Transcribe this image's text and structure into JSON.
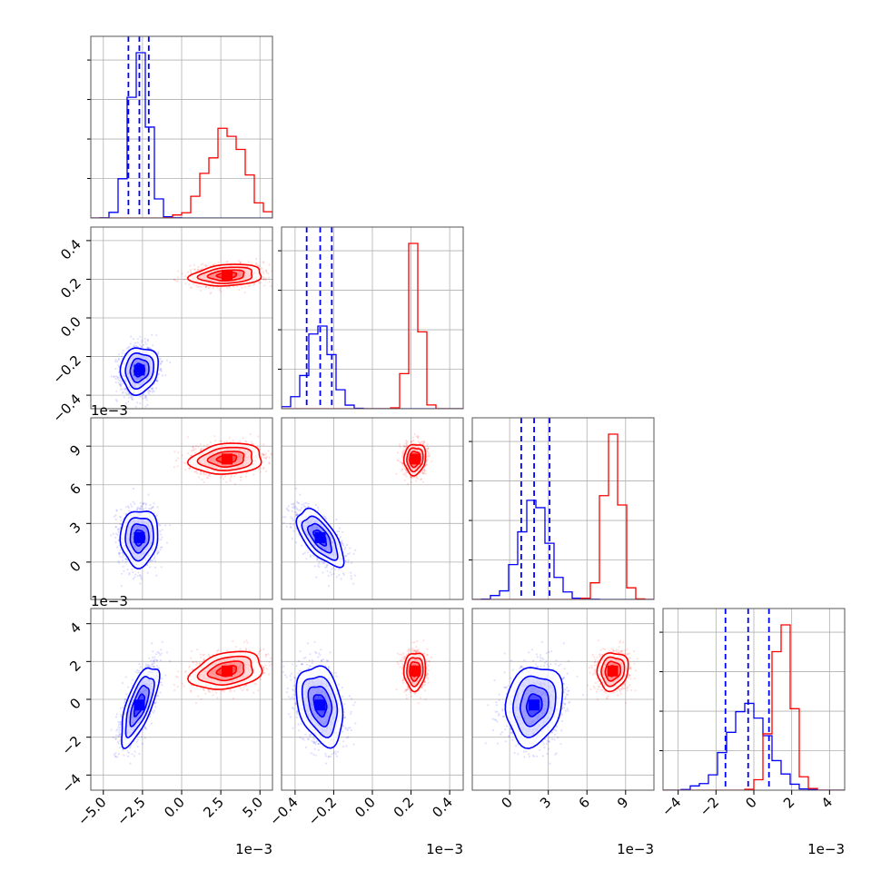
{
  "chart_data": {
    "type": "corner",
    "grid": true,
    "dims": [
      {
        "range": [
          -5.8,
          5.8
        ],
        "ticks": [
          -5.0,
          -2.5,
          0.0,
          2.5,
          5.0
        ],
        "tick_labels": [
          "−5.0",
          "−2.5",
          "0.0",
          "2.5",
          "5.0"
        ],
        "offset": "1e−3"
      },
      {
        "range": [
          -0.47,
          0.47
        ],
        "ticks": [
          -0.4,
          -0.2,
          0.0,
          0.2,
          0.4
        ],
        "tick_labels": [
          "−0.4",
          "−0.2",
          "0.0",
          "0.2",
          "0.4"
        ],
        "offset": "1e−3"
      },
      {
        "range": [
          -2.9,
          11.2
        ],
        "ticks": [
          0,
          3,
          6,
          9
        ],
        "tick_labels": [
          "0",
          "3",
          "6",
          "9"
        ],
        "offset": "1e−3"
      },
      {
        "range": [
          -4.8,
          4.8
        ],
        "ticks": [
          -4,
          -2,
          0,
          2,
          4
        ],
        "tick_labels": [
          "−4",
          "−2",
          "0",
          "2",
          "4"
        ],
        "offset": "1e−3"
      }
    ],
    "series": [
      {
        "color": "#0000ff",
        "mean": [
          -2.7,
          -0.27,
          1.9,
          -0.3
        ],
        "sd": [
          0.6,
          0.06,
          1.1,
          1.05
        ],
        "corr": {
          "0-1": 0.1,
          "0-2": 0.05,
          "0-3": 0.7,
          "1-2": -0.65,
          "1-3": -0.3,
          "2-3": 0.15
        },
        "quantiles": [
          [
            -3.4,
            -2.7,
            -2.1
          ],
          [
            -0.34,
            -0.27,
            -0.21
          ],
          [
            0.9,
            1.9,
            3.1
          ],
          [
            -1.5,
            -0.3,
            0.8
          ]
        ]
      },
      {
        "color": "#ff0000",
        "mean": [
          2.9,
          0.22,
          8.0,
          1.5
        ],
        "sd": [
          1.15,
          0.028,
          0.6,
          0.5
        ],
        "corr": {
          "0-1": 0.2,
          "0-2": 0.15,
          "0-3": 0.3,
          "1-2": 0.1,
          "1-3": 0.05,
          "2-3": 0.1
        },
        "quantiles": []
      }
    ],
    "quantile_line_color": "#0000ff"
  }
}
